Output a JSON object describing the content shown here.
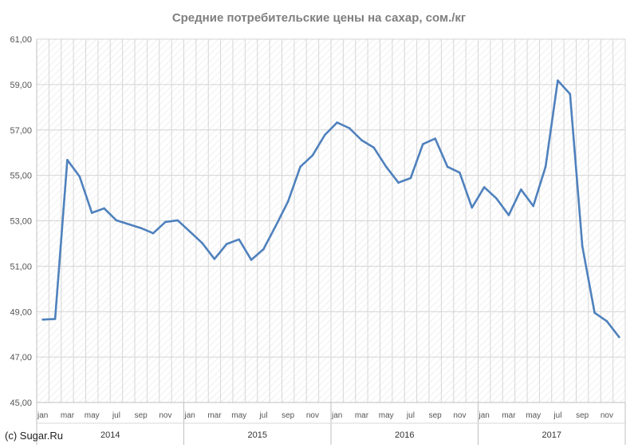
{
  "chart_data": {
    "type": "line",
    "title": "Средние потребительские цены на сахар, сом./кг",
    "xlabel": "",
    "ylabel": "",
    "ylim": [
      45,
      61
    ],
    "yticks": [
      "45,00",
      "47,00",
      "49,00",
      "51,00",
      "53,00",
      "55,00",
      "57,00",
      "59,00",
      "61,00"
    ],
    "xtick_labels": [
      "jan",
      "mar",
      "may",
      "jul",
      "sep",
      "nov"
    ],
    "years": [
      "2014",
      "2015",
      "2016",
      "2017"
    ],
    "grid": true,
    "legend": "none",
    "line_color": "#4f81bd",
    "x": [
      "2014-01",
      "2014-02",
      "2014-03",
      "2014-04",
      "2014-05",
      "2014-06",
      "2014-07",
      "2014-08",
      "2014-09",
      "2014-10",
      "2014-11",
      "2014-12",
      "2015-01",
      "2015-02",
      "2015-03",
      "2015-04",
      "2015-05",
      "2015-06",
      "2015-07",
      "2015-08",
      "2015-09",
      "2015-10",
      "2015-11",
      "2015-12",
      "2016-01",
      "2016-02",
      "2016-03",
      "2016-04",
      "2016-05",
      "2016-06",
      "2016-07",
      "2016-08",
      "2016-09",
      "2016-10",
      "2016-11",
      "2016-12",
      "2017-01",
      "2017-02",
      "2017-03",
      "2017-04",
      "2017-05",
      "2017-06",
      "2017-07",
      "2017-08",
      "2017-09",
      "2017-10",
      "2017-11",
      "2017-12"
    ],
    "values": [
      48.65,
      48.68,
      55.68,
      54.95,
      53.35,
      53.55,
      53.02,
      52.85,
      52.68,
      52.45,
      52.95,
      53.02,
      52.52,
      52.02,
      51.32,
      51.98,
      52.18,
      51.28,
      51.75,
      52.78,
      53.85,
      55.38,
      55.88,
      56.78,
      57.33,
      57.08,
      56.55,
      56.22,
      55.38,
      54.68,
      54.88,
      56.38,
      56.62,
      55.38,
      55.12,
      53.58,
      54.48,
      53.98,
      53.25,
      54.38,
      53.65,
      55.38,
      59.18,
      58.58,
      51.88,
      48.95,
      48.58,
      47.88
    ]
  },
  "footer": {
    "copyright": "(c) Sugar.Ru"
  }
}
